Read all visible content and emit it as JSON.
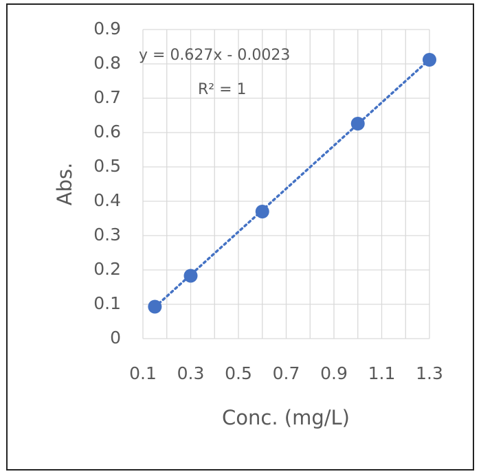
{
  "chart_data": {
    "type": "scatter",
    "x_label": "Conc. (mg/L)",
    "y_label": "Abs.",
    "x": [
      0.15,
      0.3,
      0.6,
      1.0,
      1.3
    ],
    "series": [
      {
        "color": "#4472c4",
        "values": [
          0.093,
          0.183,
          0.37,
          0.626,
          0.812
        ]
      }
    ],
    "trendline": {
      "slope": 0.627,
      "intercept": -0.0023,
      "equation": "y = 0.627x - 0.0023",
      "r2_label": "R² = 1",
      "style": "dotted"
    },
    "xlim": [
      0.1,
      1.3
    ],
    "xticks": [
      0.1,
      0.3,
      0.5,
      0.7,
      0.9,
      1.1,
      1.3
    ],
    "xgrid": [
      0.1,
      0.2,
      0.3,
      0.4,
      0.5,
      0.6,
      0.7,
      0.8,
      0.9,
      1.0,
      1.1,
      1.2,
      1.3
    ],
    "ylim": [
      0,
      0.9
    ],
    "yticks": [
      0,
      0.1,
      0.2,
      0.3,
      0.4,
      0.5,
      0.6,
      0.7,
      0.8,
      0.9
    ],
    "grid": true
  }
}
